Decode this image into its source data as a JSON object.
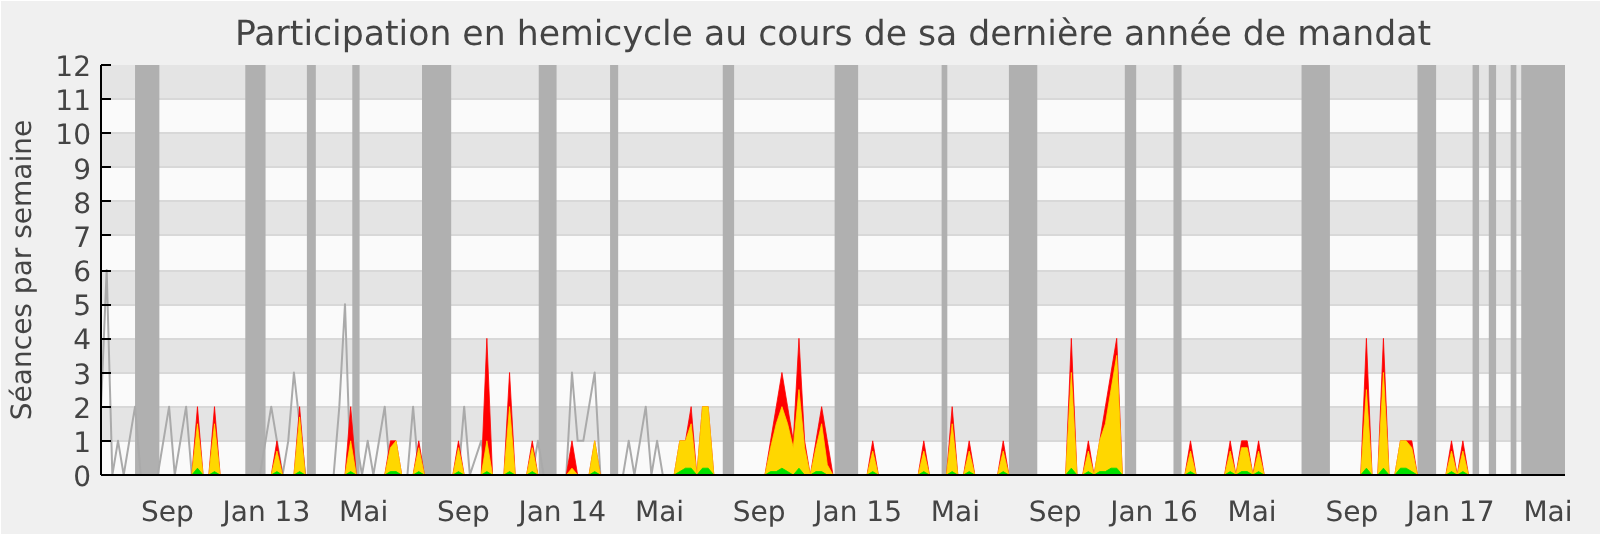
{
  "chart_data": {
    "type": "area",
    "title": "Participation en hemicycle au cours de sa dernière année de mandat",
    "ylabel": "Séances par semaine",
    "x": [
      "2012-06-25",
      "2012-10-15",
      "2012-10-22",
      "2012-10-29",
      "2012-11-05",
      "2012-11-12",
      "2012-11-19",
      "2013-01-21",
      "2013-01-28",
      "2013-02-04",
      "2013-02-18",
      "2013-02-25",
      "2013-03-04",
      "2013-04-22",
      "2013-04-29",
      "2013-05-06",
      "2013-06-10",
      "2013-06-17",
      "2013-06-24",
      "2013-07-01",
      "2013-07-15",
      "2013-07-22",
      "2013-07-29",
      "2013-09-02",
      "2013-09-09",
      "2013-09-16",
      "2013-10-07",
      "2013-10-14",
      "2013-10-21",
      "2013-11-04",
      "2013-11-11",
      "2013-11-18",
      "2013-12-02",
      "2013-12-09",
      "2013-12-16",
      "2014-01-20",
      "2014-01-27",
      "2014-02-03",
      "2014-02-17",
      "2014-02-24",
      "2014-03-03",
      "2014-06-02",
      "2014-06-09",
      "2014-06-16",
      "2014-06-23",
      "2014-06-30",
      "2014-07-07",
      "2014-07-14",
      "2014-07-21",
      "2014-09-22",
      "2014-09-29",
      "2014-10-06",
      "2014-10-13",
      "2014-10-20",
      "2014-10-27",
      "2014-11-03",
      "2014-11-10",
      "2014-11-17",
      "2014-11-24",
      "2014-12-01",
      "2014-12-08",
      "2014-12-15",
      "2015-01-26",
      "2015-02-02",
      "2015-02-09",
      "2015-03-30",
      "2015-04-06",
      "2015-04-13",
      "2015-05-04",
      "2015-05-11",
      "2015-05-18",
      "2015-05-25",
      "2015-06-01",
      "2015-06-08",
      "2015-07-06",
      "2015-07-13",
      "2015-07-20",
      "2015-09-28",
      "2015-10-05",
      "2015-10-12",
      "2015-10-19",
      "2015-10-26",
      "2015-11-02",
      "2015-11-09",
      "2015-11-16",
      "2015-11-23",
      "2015-11-30",
      "2015-12-07",
      "2016-02-22",
      "2016-02-29",
      "2016-03-07",
      "2016-04-11",
      "2016-04-18",
      "2016-04-25",
      "2016-05-02",
      "2016-05-09",
      "2016-05-16",
      "2016-05-23",
      "2016-05-30",
      "2016-09-26",
      "2016-10-03",
      "2016-10-10",
      "2016-10-17",
      "2016-10-24",
      "2016-10-31",
      "2016-11-07",
      "2016-11-14",
      "2016-11-21",
      "2016-11-28",
      "2016-12-05",
      "2017-01-09",
      "2017-01-16",
      "2017-01-23",
      "2017-01-30",
      "2017-02-06",
      "2017-05-29"
    ],
    "series": [
      {
        "type": "line",
        "color": "#aaaaaa",
        "x": [
          "2012-06-25",
          "2012-07-02",
          "2012-07-09",
          "2012-07-16",
          "2012-07-23",
          "2012-08-06",
          "2012-08-13",
          "2012-09-03",
          "2012-09-17",
          "2012-09-24",
          "2012-10-08",
          "2012-10-15",
          "2013-01-07",
          "2013-01-21",
          "2013-02-04",
          "2013-02-11",
          "2013-02-18",
          "2013-03-04",
          "2013-04-08",
          "2013-04-15",
          "2013-04-22",
          "2013-04-29",
          "2013-05-06",
          "2013-05-13",
          "2013-05-20",
          "2013-05-27",
          "2013-06-10",
          "2013-06-17",
          "2013-07-08",
          "2013-07-15",
          "2013-07-22",
          "2013-09-09",
          "2013-09-16",
          "2013-09-23",
          "2013-10-07",
          "2013-10-14",
          "2013-12-09",
          "2013-12-16",
          "2013-12-23",
          "2014-01-20",
          "2014-01-27",
          "2014-02-03",
          "2014-02-10",
          "2014-02-24",
          "2014-03-03",
          "2014-03-31",
          "2014-04-07",
          "2014-04-14",
          "2014-04-21",
          "2014-04-28",
          "2014-05-05",
          "2014-05-12",
          "2014-05-19"
        ],
        "values": [
          2,
          6,
          0,
          1,
          0,
          2,
          0,
          0,
          2,
          0,
          2,
          0,
          0,
          2,
          0,
          1,
          3,
          0,
          0,
          2,
          5,
          0,
          1,
          0,
          1,
          0,
          2,
          0,
          0,
          2,
          0,
          0,
          2,
          0,
          1,
          0,
          0,
          1,
          0,
          0,
          3,
          1,
          1,
          3,
          0,
          0,
          1,
          0,
          1,
          2,
          0,
          1,
          0
        ]
      },
      {
        "color": "#ff0000",
        "values": [
          0,
          0,
          2,
          0,
          0,
          2,
          0,
          0,
          1,
          0,
          0,
          2,
          0,
          0,
          2,
          0,
          0,
          1,
          1,
          0,
          0,
          1,
          0,
          0,
          1,
          0,
          0,
          4,
          0,
          0,
          3,
          0,
          0,
          1,
          0,
          0,
          1,
          0,
          0,
          1,
          0,
          0,
          1,
          1,
          2,
          0,
          2,
          2,
          0,
          0,
          1,
          2,
          3,
          2,
          1,
          4,
          1,
          0,
          1,
          2,
          1,
          0,
          0,
          1,
          0,
          0,
          1,
          0,
          0,
          2,
          0,
          0,
          1,
          0,
          0,
          1,
          0,
          0,
          4,
          0,
          0,
          1,
          0,
          1,
          2,
          3,
          4,
          0,
          0,
          1,
          0,
          0,
          1,
          0,
          1,
          1,
          0,
          1,
          0,
          0,
          4,
          0,
          0,
          4,
          0,
          0,
          1,
          1,
          1,
          0,
          0,
          1,
          0,
          1,
          0,
          0
        ]
      },
      {
        "color": "#ffd700",
        "values": [
          0,
          0,
          1.5,
          0,
          0,
          1.5,
          0,
          0,
          0.7,
          0,
          0,
          1.7,
          0,
          0,
          1,
          0,
          0,
          0.8,
          1,
          0,
          0,
          0.8,
          0,
          0,
          0.8,
          0,
          0,
          1,
          0,
          0,
          2,
          0,
          0,
          0.8,
          0,
          0,
          0.2,
          0,
          0,
          1,
          0,
          0,
          1,
          1,
          1.5,
          0,
          2,
          2,
          0,
          0,
          0.8,
          1.5,
          2,
          1.5,
          0.8,
          2.5,
          0.8,
          0,
          0.8,
          1.5,
          0.3,
          0,
          0,
          0.7,
          0,
          0,
          0.7,
          0,
          0,
          1.5,
          0,
          0,
          0.7,
          0,
          0,
          0.7,
          0,
          0,
          3,
          0,
          0,
          0.7,
          0,
          1,
          1.5,
          2.5,
          3.5,
          0,
          0,
          0.7,
          0,
          0,
          0.7,
          0,
          0.8,
          0.8,
          0,
          0.7,
          0,
          0,
          2.5,
          0,
          0,
          3,
          0,
          0,
          1,
          1,
          0.8,
          0,
          0,
          0.7,
          0,
          0.7,
          0,
          0
        ]
      },
      {
        "color": "#00e000",
        "values": [
          0,
          0,
          0.2,
          0,
          0,
          0.1,
          0,
          0,
          0.1,
          0,
          0,
          0.1,
          0,
          0,
          0.1,
          0,
          0,
          0.1,
          0.1,
          0,
          0,
          0.1,
          0,
          0,
          0.1,
          0,
          0,
          0.1,
          0,
          0,
          0.1,
          0,
          0,
          0.1,
          0,
          0,
          0,
          0,
          0,
          0.1,
          0,
          0,
          0.1,
          0.2,
          0.2,
          0,
          0.2,
          0.2,
          0,
          0,
          0.1,
          0.1,
          0.2,
          0.1,
          0,
          0.2,
          0,
          0,
          0.1,
          0.1,
          0,
          0,
          0,
          0.1,
          0,
          0,
          0.1,
          0,
          0,
          0.1,
          0,
          0,
          0.1,
          0,
          0,
          0.1,
          0,
          0,
          0.2,
          0,
          0,
          0.1,
          0,
          0.1,
          0.1,
          0.2,
          0.2,
          0,
          0,
          0.1,
          0,
          0,
          0.1,
          0,
          0.1,
          0.1,
          0,
          0.1,
          0,
          0,
          0.2,
          0,
          0,
          0.2,
          0,
          0,
          0.2,
          0.2,
          0.1,
          0,
          0,
          0.1,
          0,
          0.1,
          0,
          0
        ]
      }
    ],
    "bands": [
      {
        "axis": "x",
        "from": "2012-08-06",
        "to": "2012-09-05",
        "color": "#b0b0b0"
      },
      {
        "axis": "x",
        "from": "2012-12-20",
        "to": "2013-01-14",
        "color": "#b0b0b0"
      },
      {
        "axis": "x",
        "from": "2013-03-06",
        "to": "2013-03-17",
        "color": "#b0b0b0"
      },
      {
        "axis": "x",
        "from": "2013-05-01",
        "to": "2013-05-10",
        "color": "#b0b0b0"
      },
      {
        "axis": "x",
        "from": "2013-07-26",
        "to": "2013-08-31",
        "color": "#b0b0b0"
      },
      {
        "axis": "x",
        "from": "2013-12-17",
        "to": "2014-01-08",
        "color": "#b0b0b0"
      },
      {
        "axis": "x",
        "from": "2014-03-15",
        "to": "2014-03-25",
        "color": "#b0b0b0"
      },
      {
        "axis": "x",
        "from": "2014-08-01",
        "to": "2014-08-15",
        "color": "#b0b0b0"
      },
      {
        "axis": "x",
        "from": "2014-12-17",
        "to": "2015-01-15",
        "color": "#b0b0b0"
      },
      {
        "axis": "x",
        "from": "2015-04-28",
        "to": "2015-05-05",
        "color": "#b0b0b0"
      },
      {
        "axis": "x",
        "from": "2015-07-20",
        "to": "2015-08-24",
        "color": "#b0b0b0"
      },
      {
        "axis": "x",
        "from": "2015-12-10",
        "to": "2015-12-24",
        "color": "#b0b0b0"
      },
      {
        "axis": "x",
        "from": "2016-02-08",
        "to": "2016-02-18",
        "color": "#b0b0b0"
      },
      {
        "axis": "x",
        "from": "2016-07-15",
        "to": "2016-08-19",
        "color": "#b0b0b0"
      },
      {
        "axis": "x",
        "from": "2016-12-05",
        "to": "2016-12-28",
        "color": "#b0b0b0"
      },
      {
        "axis": "x",
        "from": "2017-02-11",
        "to": "2017-02-19",
        "color": "#b0b0b0"
      },
      {
        "axis": "x",
        "from": "2017-03-03",
        "to": "2017-03-12",
        "color": "#b0b0b0"
      },
      {
        "axis": "x",
        "from": "2017-03-30",
        "to": "2017-04-06",
        "color": "#b0b0b0"
      },
      {
        "axis": "x",
        "from": "2017-04-12",
        "to": "2017-06-05",
        "color": "#b0b0b0"
      }
    ],
    "xlim": [
      "2012-06-25",
      "2017-06-05"
    ],
    "xticks": [
      {
        "value": "2012-09-15",
        "label": "Sep"
      },
      {
        "value": "2013-01-15",
        "label": "Jan 13"
      },
      {
        "value": "2013-05-15",
        "label": "Mai"
      },
      {
        "value": "2013-09-15",
        "label": "Sep"
      },
      {
        "value": "2014-01-15",
        "label": "Jan 14"
      },
      {
        "value": "2014-05-15",
        "label": "Mai"
      },
      {
        "value": "2014-09-15",
        "label": "Sep"
      },
      {
        "value": "2015-01-15",
        "label": "Jan 15"
      },
      {
        "value": "2015-05-15",
        "label": "Mai"
      },
      {
        "value": "2015-09-15",
        "label": "Sep"
      },
      {
        "value": "2016-01-15",
        "label": "Jan 16"
      },
      {
        "value": "2016-05-15",
        "label": "Mai"
      },
      {
        "value": "2016-09-15",
        "label": "Sep"
      },
      {
        "value": "2017-01-15",
        "label": "Jan 17"
      },
      {
        "value": "2017-05-15",
        "label": "Mai"
      }
    ],
    "ylim": [
      0,
      12
    ],
    "yticks": [
      0,
      1,
      2,
      3,
      4,
      5,
      6,
      7,
      8,
      9,
      10,
      11,
      12
    ],
    "grid": "y"
  }
}
